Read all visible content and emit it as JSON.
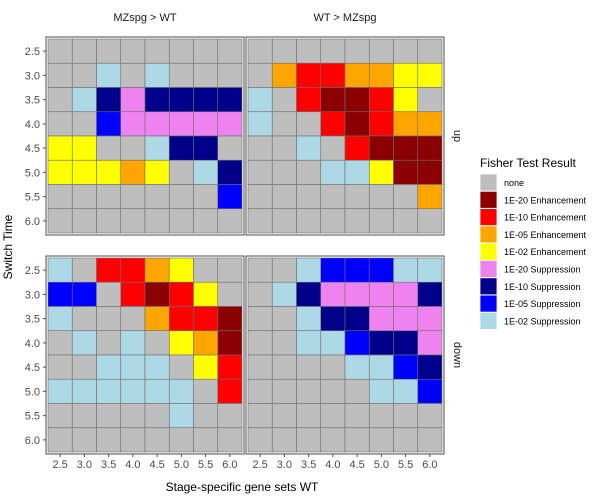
{
  "chart_data": {
    "type": "heatmap",
    "xlabel": "Stage-specific gene sets WT",
    "ylabel": "Switch Time",
    "x_ticks": [
      "2.5",
      "3.0",
      "3.5",
      "4.0",
      "4.5",
      "5.0",
      "5.5",
      "6.0"
    ],
    "y_ticks": [
      "2.5",
      "3.0",
      "3.5",
      "4.0",
      "4.5",
      "5.0",
      "5.5",
      "6.0"
    ],
    "column_facets": [
      "MZspg > WT",
      "WT > MZspg"
    ],
    "row_facets": [
      "up",
      "down"
    ],
    "legend": {
      "title": "Fisher Test Result",
      "position": "right",
      "entries": [
        {
          "label": "none",
          "code": "N",
          "color": "#bebebe"
        },
        {
          "label": "1E-20 Enhancement",
          "code": "E20",
          "color": "#8b0000"
        },
        {
          "label": "1E-10 Enhancement",
          "code": "E10",
          "color": "#ff0000"
        },
        {
          "label": "1E-05 Enhancement",
          "code": "E05",
          "color": "#ffa500"
        },
        {
          "label": "1E-02 Enhancement",
          "code": "E02",
          "color": "#ffff00"
        },
        {
          "label": "1E-20 Suppression",
          "code": "S20",
          "color": "#ee82ee"
        },
        {
          "label": "1E-10 Suppression",
          "code": "S10",
          "color": "#00008b"
        },
        {
          "label": "1E-05 Suppression",
          "code": "S05",
          "color": "#0000ff"
        },
        {
          "label": "1E-02 Suppression",
          "code": "S02",
          "color": "#add8e6"
        }
      ]
    },
    "grid": true,
    "panels": [
      {
        "column": "MZspg > WT",
        "row": "up",
        "cells": [
          [
            "N",
            "N",
            "N",
            "N",
            "N",
            "N",
            "N",
            "N"
          ],
          [
            "N",
            "N",
            "S02",
            "N",
            "S02",
            "N",
            "N",
            "N"
          ],
          [
            "N",
            "S02",
            "S10",
            "S20",
            "S10",
            "S10",
            "S10",
            "S10"
          ],
          [
            "N",
            "N",
            "S05",
            "S20",
            "S20",
            "S20",
            "S20",
            "S20"
          ],
          [
            "E02",
            "E02",
            "N",
            "N",
            "S02",
            "S10",
            "S10",
            "N"
          ],
          [
            "E02",
            "E02",
            "E02",
            "E05",
            "E02",
            "N",
            "S02",
            "S10"
          ],
          [
            "N",
            "N",
            "N",
            "N",
            "N",
            "N",
            "N",
            "S05"
          ],
          [
            "N",
            "N",
            "N",
            "N",
            "N",
            "N",
            "N",
            "N"
          ]
        ]
      },
      {
        "column": "WT > MZspg",
        "row": "up",
        "cells": [
          [
            "N",
            "N",
            "N",
            "N",
            "N",
            "N",
            "N",
            "N"
          ],
          [
            "N",
            "E05",
            "E10",
            "E10",
            "E05",
            "E05",
            "E02",
            "E02"
          ],
          [
            "S02",
            "N",
            "E10",
            "E20",
            "E20",
            "E10",
            "E02",
            "N"
          ],
          [
            "S02",
            "N",
            "N",
            "E10",
            "E20",
            "E10",
            "E05",
            "E05"
          ],
          [
            "N",
            "N",
            "S02",
            "N",
            "E10",
            "E20",
            "E20",
            "E20"
          ],
          [
            "N",
            "N",
            "N",
            "S02",
            "S02",
            "E02",
            "E20",
            "E20"
          ],
          [
            "N",
            "N",
            "N",
            "N",
            "N",
            "N",
            "N",
            "E05"
          ],
          [
            "N",
            "N",
            "N",
            "N",
            "N",
            "N",
            "N",
            "N"
          ]
        ]
      },
      {
        "column": "MZspg > WT",
        "row": "down",
        "cells": [
          [
            "S02",
            "N",
            "E10",
            "E10",
            "E05",
            "E02",
            "N",
            "N"
          ],
          [
            "S05",
            "S05",
            "N",
            "E10",
            "E20",
            "E10",
            "E02",
            "N"
          ],
          [
            "S02",
            "N",
            "N",
            "N",
            "E05",
            "E10",
            "E10",
            "E20"
          ],
          [
            "N",
            "S02",
            "N",
            "S02",
            "N",
            "E02",
            "E05",
            "E20"
          ],
          [
            "N",
            "N",
            "S02",
            "S02",
            "S02",
            "N",
            "E02",
            "E10"
          ],
          [
            "S02",
            "S02",
            "S02",
            "S02",
            "S02",
            "S02",
            "N",
            "E10"
          ],
          [
            "N",
            "N",
            "N",
            "N",
            "N",
            "S02",
            "N",
            "N"
          ],
          [
            "N",
            "N",
            "N",
            "N",
            "N",
            "N",
            "N",
            "N"
          ]
        ]
      },
      {
        "column": "WT > MZspg",
        "row": "down",
        "cells": [
          [
            "N",
            "N",
            "S02",
            "S05",
            "S05",
            "S05",
            "S02",
            "S02"
          ],
          [
            "N",
            "S02",
            "S10",
            "S20",
            "S20",
            "S20",
            "S20",
            "S10"
          ],
          [
            "N",
            "N",
            "S02",
            "S10",
            "S10",
            "S20",
            "S20",
            "S20"
          ],
          [
            "N",
            "N",
            "S02",
            "S02",
            "S05",
            "S10",
            "S10",
            "S20"
          ],
          [
            "N",
            "N",
            "N",
            "N",
            "S02",
            "S02",
            "S05",
            "S10"
          ],
          [
            "N",
            "N",
            "N",
            "N",
            "N",
            "S02",
            "S02",
            "S05"
          ],
          [
            "N",
            "N",
            "N",
            "N",
            "N",
            "N",
            "N",
            "N"
          ],
          [
            "N",
            "N",
            "N",
            "N",
            "N",
            "N",
            "N",
            "N"
          ]
        ]
      }
    ]
  }
}
